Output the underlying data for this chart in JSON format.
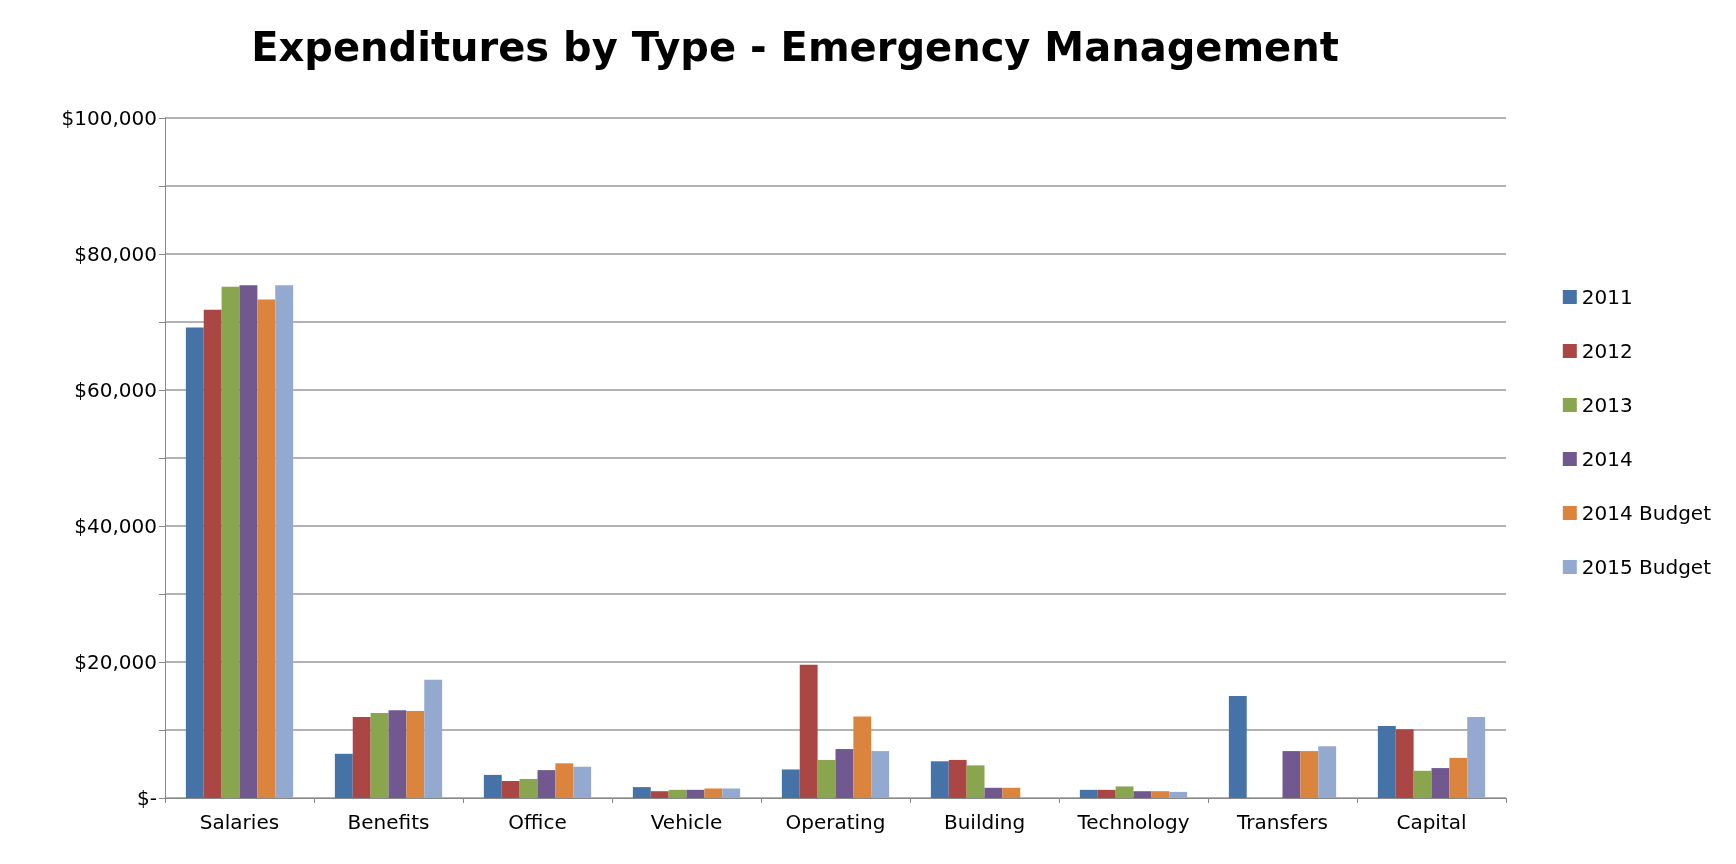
{
  "chart_data": {
    "type": "bar",
    "title": "Expenditures by Type - Emergency Management",
    "categories": [
      "Salaries",
      "Benefits",
      "Office",
      "Vehicle",
      "Operating",
      "Building",
      "Technology",
      "Transfers",
      "Capital"
    ],
    "series": [
      {
        "name": "2011",
        "color": "#4572a7",
        "values": [
          69200,
          6500,
          3400,
          1600,
          4200,
          5400,
          1200,
          15000,
          10600
        ]
      },
      {
        "name": "2012",
        "color": "#aa4643",
        "values": [
          71800,
          11900,
          2500,
          1000,
          19600,
          5600,
          1200,
          null,
          10100
        ]
      },
      {
        "name": "2013",
        "color": "#89a54e",
        "values": [
          75200,
          12500,
          2800,
          1200,
          5600,
          4800,
          1700,
          null,
          4000
        ]
      },
      {
        "name": "2014",
        "color": "#71588f",
        "values": [
          75400,
          12900,
          4100,
          1200,
          7200,
          1500,
          1000,
          6900,
          4400
        ]
      },
      {
        "name": "2014 Budget",
        "color": "#db843d",
        "values": [
          73300,
          12800,
          5100,
          1400,
          12000,
          1500,
          1000,
          6900,
          5900
        ]
      },
      {
        "name": "2015 Budget",
        "color": "#93a9cf",
        "values": [
          75400,
          17400,
          4600,
          1400,
          6900,
          null,
          900,
          7600,
          11900
        ]
      }
    ],
    "ylim": [
      0,
      100000
    ],
    "yticks": [
      {
        "value": 0,
        "label": "$-"
      },
      {
        "value": 10000,
        "label": null
      },
      {
        "value": 20000,
        "label": "$20,000"
      },
      {
        "value": 30000,
        "label": null
      },
      {
        "value": 40000,
        "label": "$40,000"
      },
      {
        "value": 50000,
        "label": null
      },
      {
        "value": 60000,
        "label": "$60,000"
      },
      {
        "value": 70000,
        "label": null
      },
      {
        "value": 80000,
        "label": "$80,000"
      },
      {
        "value": 90000,
        "label": null
      },
      {
        "value": 100000,
        "label": "$100,000"
      }
    ],
    "grid": true,
    "legend": "right"
  }
}
